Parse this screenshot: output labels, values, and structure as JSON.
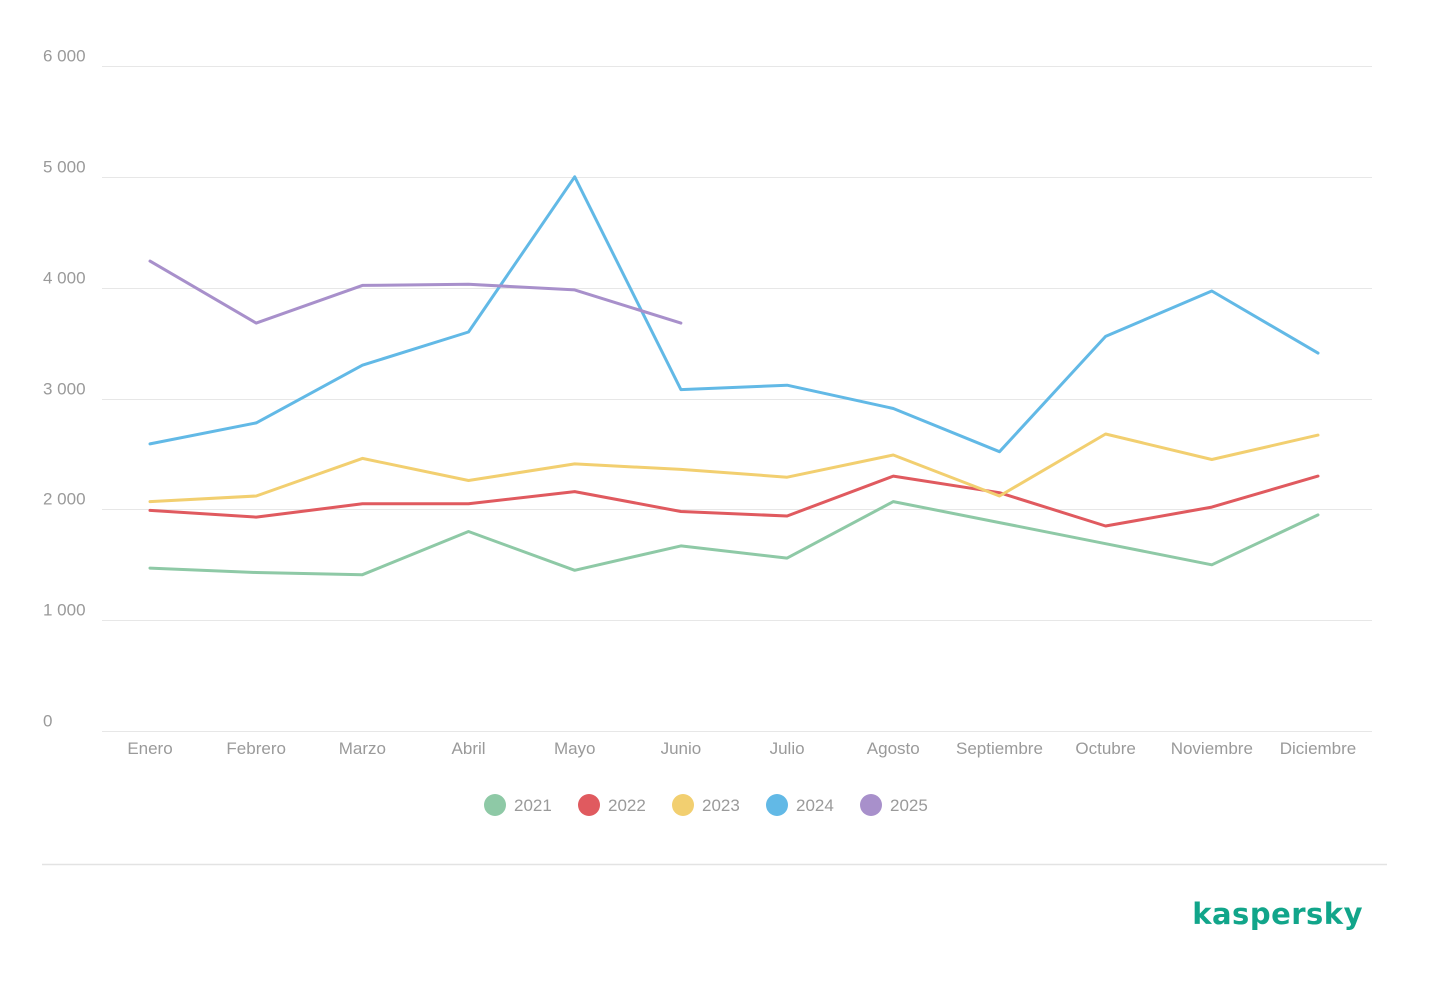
{
  "brand": {
    "name": "kaspersky",
    "color": "#11a58a"
  },
  "chart_data": {
    "type": "line",
    "title": "",
    "xlabel": "",
    "ylabel": "",
    "ylim": [
      0,
      6000
    ],
    "grid": true,
    "legend_position": "bottom-center",
    "yticks": [
      {
        "value": 0,
        "label": "0"
      },
      {
        "value": 1000,
        "label": "1 000"
      },
      {
        "value": 2000,
        "label": "2 000"
      },
      {
        "value": 3000,
        "label": "3 000"
      },
      {
        "value": 4000,
        "label": "4 000"
      },
      {
        "value": 5000,
        "label": "5 000"
      },
      {
        "value": 6000,
        "label": "6 000"
      }
    ],
    "categories": [
      "Enero",
      "Febrero",
      "Marzo",
      "Abril",
      "Mayo",
      "Junio",
      "Julio",
      "Agosto",
      "Septiembre",
      "Octubre",
      "Noviembre",
      "Diciembre"
    ],
    "series": [
      {
        "name": "2021",
        "color": "#8ec9a6",
        "values": [
          1470,
          1430,
          1410,
          1800,
          1450,
          1670,
          1560,
          2070,
          1880,
          1690,
          1500,
          1950
        ]
      },
      {
        "name": "2022",
        "color": "#e05a5f",
        "values": [
          1990,
          1930,
          2050,
          2050,
          2160,
          1980,
          1940,
          2300,
          2150,
          1850,
          2020,
          2300
        ]
      },
      {
        "name": "2023",
        "color": "#f2cf70",
        "values": [
          2070,
          2120,
          2460,
          2260,
          2410,
          2360,
          2290,
          2490,
          2120,
          2680,
          2450,
          2670
        ]
      },
      {
        "name": "2024",
        "color": "#62b9e6",
        "values": [
          2590,
          2780,
          3300,
          3600,
          5000,
          3080,
          3120,
          2910,
          2520,
          3560,
          3970,
          3410
        ]
      },
      {
        "name": "2025",
        "color": "#a890cb",
        "values": [
          4240,
          3680,
          4020,
          4030,
          3980,
          3680,
          null,
          null,
          null,
          null,
          null,
          null
        ]
      }
    ]
  }
}
